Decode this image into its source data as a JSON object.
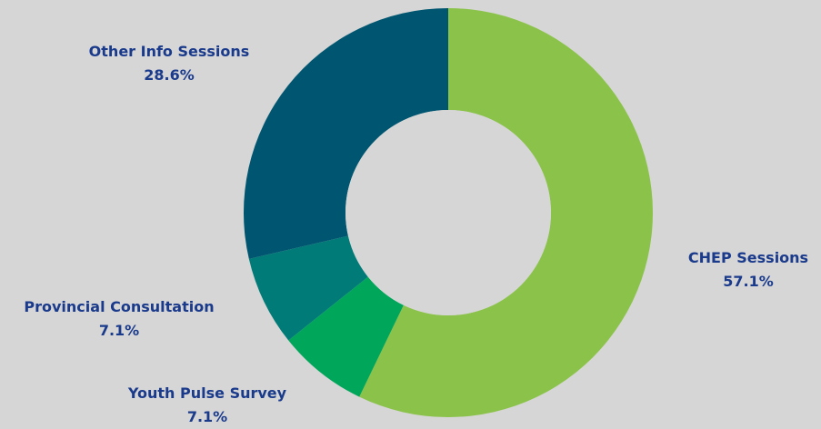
{
  "colors": {
    "background": "#d6d6d6",
    "label_text": "#1a3a8c",
    "hole": "#d6d6d6"
  },
  "chart_data": {
    "type": "pie",
    "donut": true,
    "title": "",
    "slices": [
      {
        "label": "CHEP Sessions",
        "value": 57.1,
        "value_label": "57.1%",
        "color": "#8bc34a"
      },
      {
        "label": "Youth Pulse Survey",
        "value": 7.1,
        "value_label": "7.1%",
        "color": "#00a65a"
      },
      {
        "label": "Provincial Consultation",
        "value": 7.1,
        "value_label": "7.1%",
        "color": "#007b78"
      },
      {
        "label": "Other Info Sessions",
        "value": 28.6,
        "value_label": "28.6%",
        "color": "#005670"
      }
    ],
    "legend": "none"
  }
}
